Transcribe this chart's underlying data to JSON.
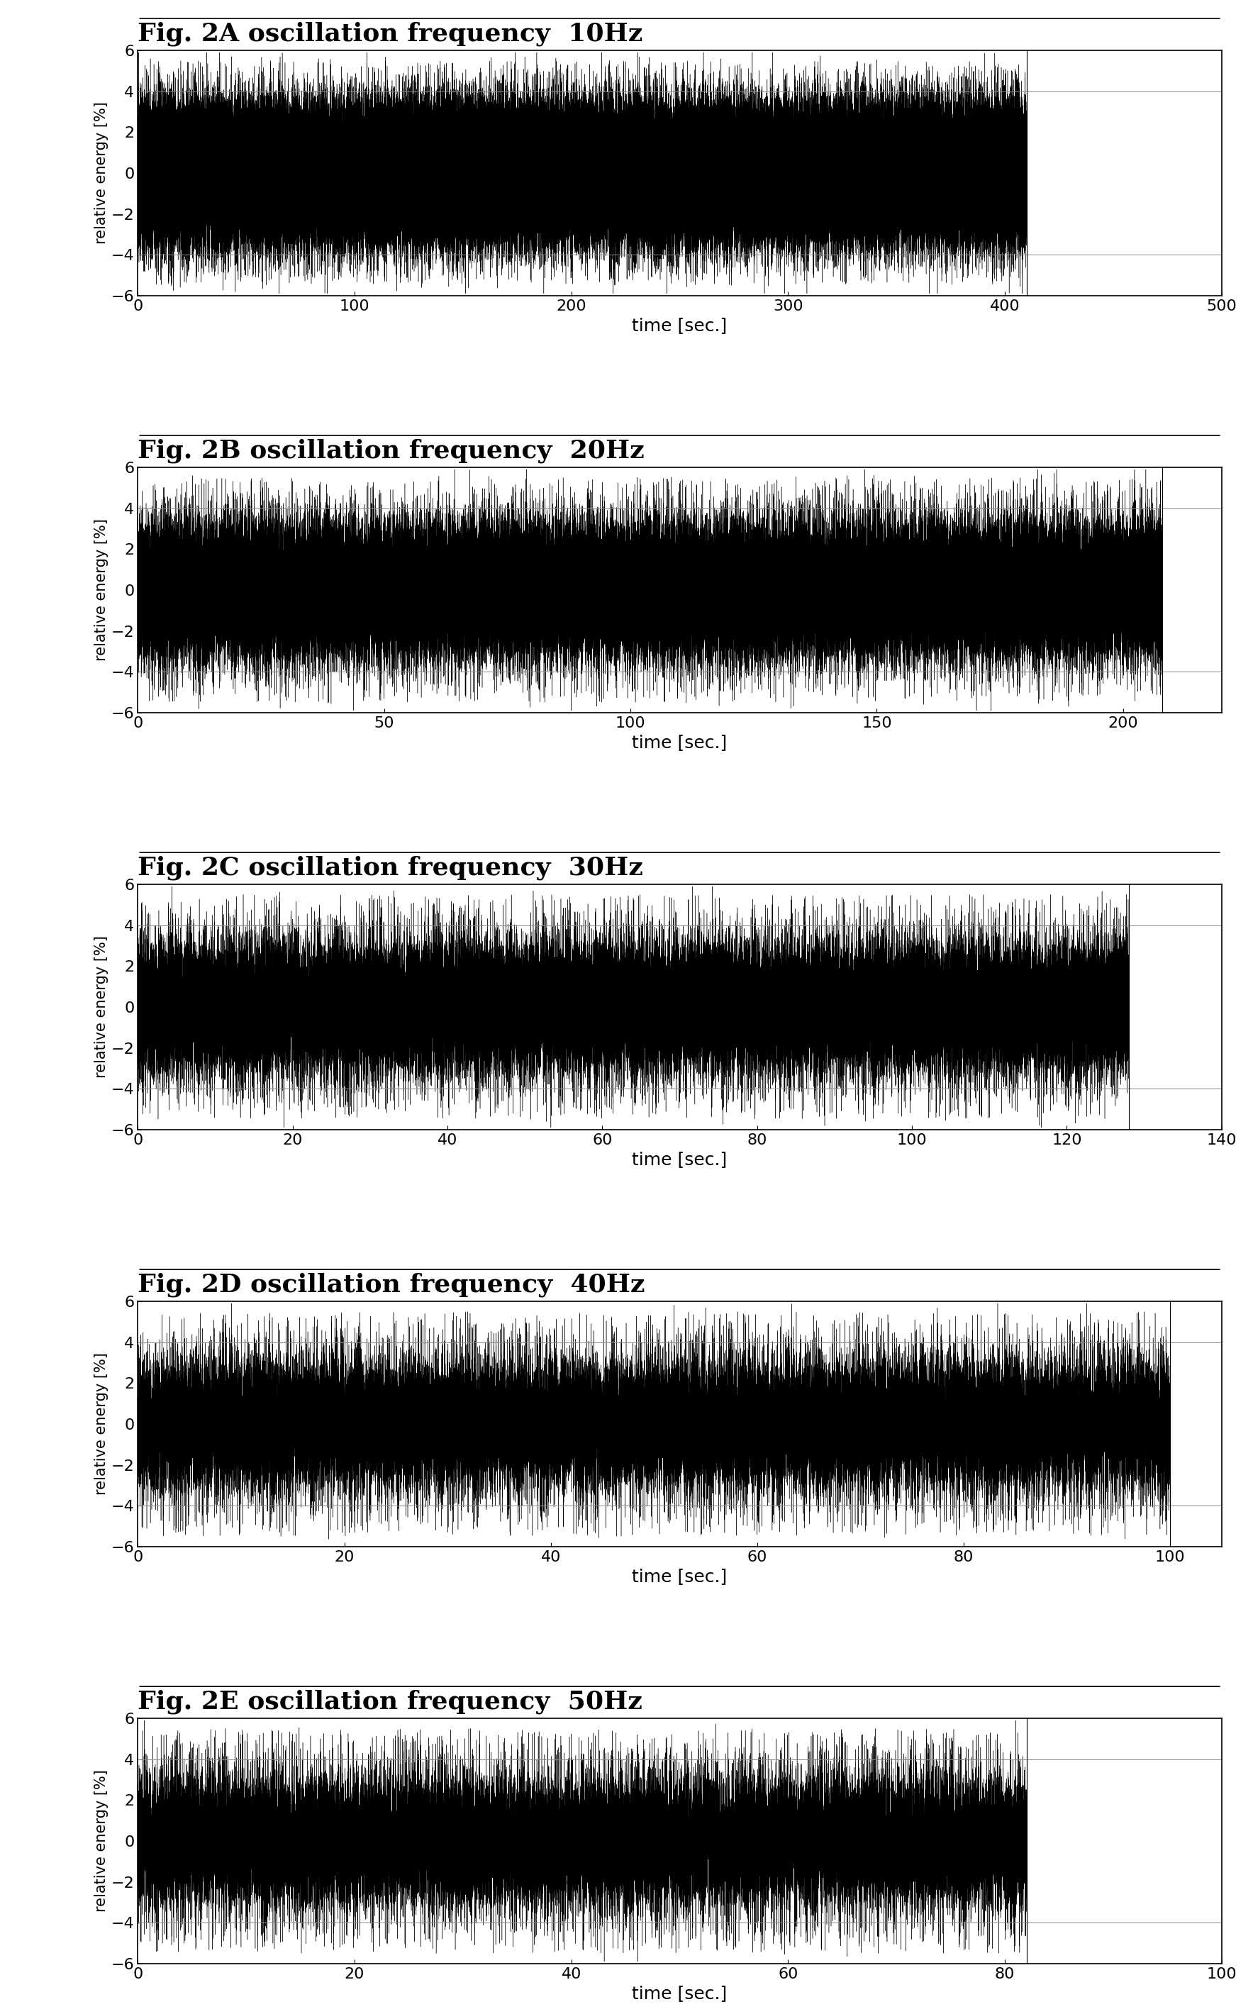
{
  "panels": [
    {
      "label": "Fig. 2A",
      "title": " oscillation frequency  10Hz",
      "freq": 10,
      "xlim": [
        0,
        500
      ],
      "xticks": [
        0,
        100,
        200,
        300,
        400,
        500
      ],
      "duration": 410,
      "ylim": [
        -6,
        6
      ],
      "yticks": [
        -6,
        -4,
        -2,
        0,
        2,
        4,
        6
      ],
      "hlines": [
        -4,
        4
      ],
      "seed": 42
    },
    {
      "label": "Fig. 2B",
      "title": " oscillation frequency  20Hz",
      "freq": 20,
      "xlim": [
        0,
        220
      ],
      "xticks": [
        0,
        50,
        100,
        150,
        200
      ],
      "duration": 208,
      "ylim": [
        -6,
        6
      ],
      "yticks": [
        -6,
        -4,
        -2,
        0,
        2,
        4,
        6
      ],
      "hlines": [
        -4,
        4
      ],
      "seed": 43
    },
    {
      "label": "Fig. 2C",
      "title": " oscillation frequency  30Hz",
      "freq": 30,
      "xlim": [
        0,
        140
      ],
      "xticks": [
        0,
        20,
        40,
        60,
        80,
        100,
        120,
        140
      ],
      "duration": 128,
      "ylim": [
        -6,
        6
      ],
      "yticks": [
        -6,
        -4,
        -2,
        0,
        2,
        4,
        6
      ],
      "hlines": [
        -4,
        4
      ],
      "seed": 44
    },
    {
      "label": "Fig. 2D",
      "title": " oscillation frequency  40Hz",
      "freq": 40,
      "xlim": [
        0,
        105
      ],
      "xticks": [
        0,
        20,
        40,
        60,
        80,
        100
      ],
      "duration": 100,
      "ylim": [
        -6,
        6
      ],
      "yticks": [
        -6,
        -4,
        -2,
        0,
        2,
        4,
        6
      ],
      "hlines": [
        -4,
        4
      ],
      "seed": 45
    },
    {
      "label": "Fig. 2E",
      "title": " oscillation frequency  50Hz",
      "freq": 50,
      "xlim": [
        0,
        100
      ],
      "xticks": [
        0,
        20,
        40,
        60,
        80,
        100
      ],
      "duration": 82,
      "ylim": [
        -6,
        6
      ],
      "yticks": [
        -6,
        -4,
        -2,
        0,
        2,
        4,
        6
      ],
      "hlines": [
        -4,
        4
      ],
      "seed": 46
    }
  ],
  "signal_color": "#000000",
  "hline_color": "#888888",
  "background_color": "#ffffff",
  "ylabel": "relative energy [%]",
  "xlabel": "time [sec.]",
  "title_fontsize": 26,
  "label_fontsize": 18,
  "tick_fontsize": 16,
  "ylabel_fontsize": 15,
  "linewidth": 0.3,
  "hline_linewidth": 0.7
}
